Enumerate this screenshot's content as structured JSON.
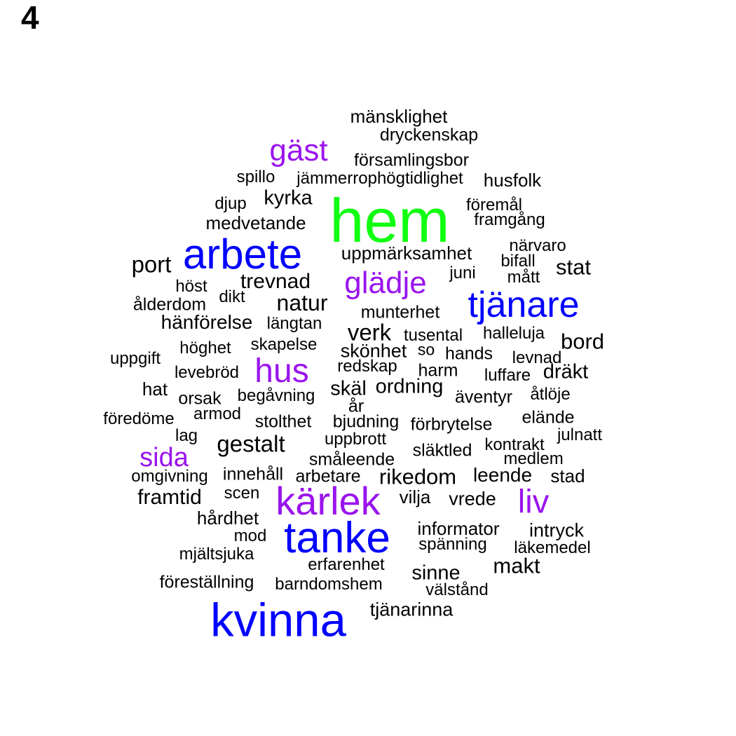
{
  "panel_label": "4",
  "colors": {
    "black": "#000000",
    "blue": "#0000ff",
    "purple": "#9a14ee",
    "green": "#11ff11"
  },
  "words": [
    {
      "text": "mänsklighet",
      "color": "black"
    },
    {
      "text": "dryckenskap",
      "color": "black"
    },
    {
      "text": "gäst",
      "color": "purple"
    },
    {
      "text": "församlingsbor",
      "color": "black"
    },
    {
      "text": "spillo",
      "color": "black"
    },
    {
      "text": "jämmerrophögtidlighet",
      "color": "black"
    },
    {
      "text": "husfolk",
      "color": "black"
    },
    {
      "text": "kyrka",
      "color": "black"
    },
    {
      "text": "djup",
      "color": "black"
    },
    {
      "text": "hem",
      "color": "green"
    },
    {
      "text": "föremål",
      "color": "black"
    },
    {
      "text": "framgång",
      "color": "black"
    },
    {
      "text": "medvetande",
      "color": "black"
    },
    {
      "text": "arbete",
      "color": "blue"
    },
    {
      "text": "närvaro",
      "color": "black"
    },
    {
      "text": "port",
      "color": "black"
    },
    {
      "text": "uppmärksamhet",
      "color": "black"
    },
    {
      "text": "bifall",
      "color": "black"
    },
    {
      "text": "stat",
      "color": "black"
    },
    {
      "text": "juni",
      "color": "black"
    },
    {
      "text": "mått",
      "color": "black"
    },
    {
      "text": "höst",
      "color": "black"
    },
    {
      "text": "trevnad",
      "color": "black"
    },
    {
      "text": "glädje",
      "color": "purple"
    },
    {
      "text": "dikt",
      "color": "black"
    },
    {
      "text": "ålderdom",
      "color": "black"
    },
    {
      "text": "natur",
      "color": "black"
    },
    {
      "text": "tjänare",
      "color": "blue"
    },
    {
      "text": "munterhet",
      "color": "black"
    },
    {
      "text": "hänförelse",
      "color": "black"
    },
    {
      "text": "längtan",
      "color": "black"
    },
    {
      "text": "verk",
      "color": "black"
    },
    {
      "text": "tusental",
      "color": "black"
    },
    {
      "text": "halleluja",
      "color": "black"
    },
    {
      "text": "bord",
      "color": "black"
    },
    {
      "text": "höghet",
      "color": "black"
    },
    {
      "text": "skapelse",
      "color": "black"
    },
    {
      "text": "skönhet",
      "color": "black"
    },
    {
      "text": "so",
      "color": "black"
    },
    {
      "text": "hands",
      "color": "black"
    },
    {
      "text": "uppgift",
      "color": "black"
    },
    {
      "text": "levnad",
      "color": "black"
    },
    {
      "text": "hus",
      "color": "purple"
    },
    {
      "text": "redskap",
      "color": "black"
    },
    {
      "text": "levebröd",
      "color": "black"
    },
    {
      "text": "harm",
      "color": "black"
    },
    {
      "text": "dräkt",
      "color": "black"
    },
    {
      "text": "luffare",
      "color": "black"
    },
    {
      "text": "hat",
      "color": "black"
    },
    {
      "text": "skäl",
      "color": "black"
    },
    {
      "text": "ordning",
      "color": "black"
    },
    {
      "text": "orsak",
      "color": "black"
    },
    {
      "text": "begåvning",
      "color": "black"
    },
    {
      "text": "åtlöje",
      "color": "black"
    },
    {
      "text": "äventyr",
      "color": "black"
    },
    {
      "text": "år",
      "color": "black"
    },
    {
      "text": "armod",
      "color": "black"
    },
    {
      "text": "föredöme",
      "color": "black"
    },
    {
      "text": "stolthet",
      "color": "black"
    },
    {
      "text": "bjudning",
      "color": "black"
    },
    {
      "text": "förbrytelse",
      "color": "black"
    },
    {
      "text": "elände",
      "color": "black"
    },
    {
      "text": "lag",
      "color": "black"
    },
    {
      "text": "julnatt",
      "color": "black"
    },
    {
      "text": "gestalt",
      "color": "black"
    },
    {
      "text": "uppbrott",
      "color": "black"
    },
    {
      "text": "kontrakt",
      "color": "black"
    },
    {
      "text": "sida",
      "color": "purple"
    },
    {
      "text": "släktled",
      "color": "black"
    },
    {
      "text": "medlem",
      "color": "black"
    },
    {
      "text": "småleende",
      "color": "black"
    },
    {
      "text": "omgivning",
      "color": "black"
    },
    {
      "text": "innehåll",
      "color": "black"
    },
    {
      "text": "arbetare",
      "color": "black"
    },
    {
      "text": "rikedom",
      "color": "black"
    },
    {
      "text": "leende",
      "color": "black"
    },
    {
      "text": "stad",
      "color": "black"
    },
    {
      "text": "framtid",
      "color": "black"
    },
    {
      "text": "scen",
      "color": "black"
    },
    {
      "text": "kärlek",
      "color": "purple"
    },
    {
      "text": "vilja",
      "color": "black"
    },
    {
      "text": "vrede",
      "color": "black"
    },
    {
      "text": "liv",
      "color": "purple"
    },
    {
      "text": "hårdhet",
      "color": "black"
    },
    {
      "text": "informator",
      "color": "black"
    },
    {
      "text": "intryck",
      "color": "black"
    },
    {
      "text": "mod",
      "color": "black"
    },
    {
      "text": "tanke",
      "color": "blue"
    },
    {
      "text": "spänning",
      "color": "black"
    },
    {
      "text": "läkemedel",
      "color": "black"
    },
    {
      "text": "mjältsjuka",
      "color": "black"
    },
    {
      "text": "makt",
      "color": "black"
    },
    {
      "text": "erfarenhet",
      "color": "black"
    },
    {
      "text": "sinne",
      "color": "black"
    },
    {
      "text": "föreställning",
      "color": "black"
    },
    {
      "text": "barndomshem",
      "color": "black"
    },
    {
      "text": "välstånd",
      "color": "black"
    },
    {
      "text": "kvinna",
      "color": "blue"
    },
    {
      "text": "tjänarinna",
      "color": "black"
    }
  ]
}
